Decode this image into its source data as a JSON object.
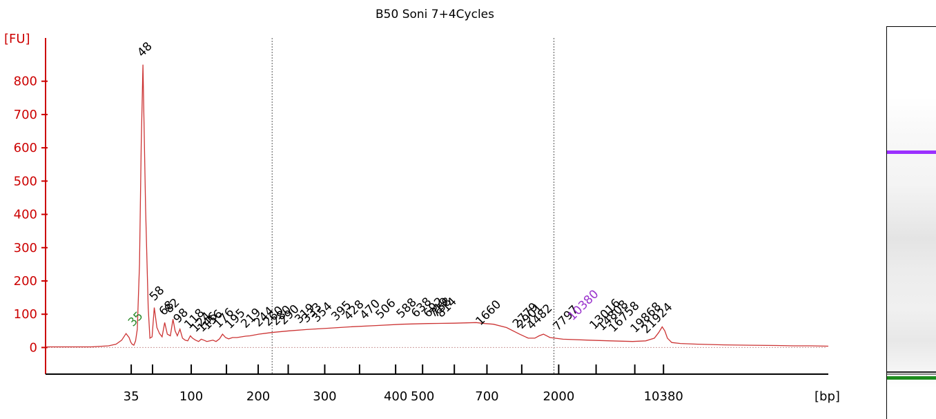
{
  "chart_data": {
    "type": "line",
    "title": "B50 Soni 7+4Cycles",
    "ylabel": "[FU]",
    "xlabel": "[bp]",
    "ylim": [
      -80,
      930
    ],
    "yticks": [
      0,
      100,
      200,
      300,
      400,
      500,
      600,
      700,
      800
    ],
    "xticks": [
      {
        "pos": 0.197,
        "label": "35"
      },
      {
        "pos": 0.246,
        "label": ""
      },
      {
        "pos": 0.335,
        "label": "100"
      },
      {
        "pos": 0.416,
        "label": ""
      },
      {
        "pos": 0.489,
        "label": "200"
      },
      {
        "pos": 0.558,
        "label": ""
      },
      {
        "pos": 0.642,
        "label": "300"
      },
      {
        "pos": 0.722,
        "label": ""
      },
      {
        "pos": 0.805,
        "label": "400"
      },
      {
        "pos": 0.867,
        "label": "500"
      },
      {
        "pos": 0.94,
        "label": ""
      },
      {
        "pos": 1.015,
        "label": "700"
      },
      {
        "pos": 1.095,
        "label": ""
      },
      {
        "pos": 1.18,
        "label": "2000"
      },
      {
        "pos": 1.266,
        "label": ""
      },
      {
        "pos": 1.355,
        "label": ""
      },
      {
        "pos": 1.421,
        "label": "10380"
      }
    ],
    "vlines": [
      0.521,
      1.169
    ],
    "series": [
      {
        "color": "#cc3333",
        "x": [
          0,
          0.105,
          0.145,
          0.162,
          0.175,
          0.185,
          0.192,
          0.196,
          0.199,
          0.203,
          0.207,
          0.211,
          0.216,
          0.22,
          0.224,
          0.23,
          0.236,
          0.24,
          0.245,
          0.25,
          0.256,
          0.262,
          0.268,
          0.274,
          0.28,
          0.287,
          0.293,
          0.298,
          0.303,
          0.309,
          0.315,
          0.321,
          0.327,
          0.333,
          0.338,
          0.345,
          0.352,
          0.358,
          0.364,
          0.371,
          0.378,
          0.385,
          0.392,
          0.4,
          0.407,
          0.414,
          0.421,
          0.43,
          0.44,
          0.45,
          0.46,
          0.47,
          0.49,
          0.52,
          0.56,
          0.6,
          0.65,
          0.7,
          0.76,
          0.82,
          0.88,
          0.94,
          0.99,
          1.01,
          1.03,
          1.06,
          1.09,
          1.11,
          1.125,
          1.135,
          1.145,
          1.16,
          1.19,
          1.25,
          1.3,
          1.35,
          1.38,
          1.4,
          1.41,
          1.418,
          1.424,
          1.43,
          1.44,
          1.46,
          1.5,
          1.56,
          1.62,
          1.68,
          1.72,
          1.76,
          1.8
        ],
        "y": [
          2,
          2,
          5,
          10,
          22,
          42,
          30,
          16,
          10,
          7,
          20,
          55,
          250,
          610,
          850,
          420,
          120,
          28,
          32,
          120,
          60,
          42,
          32,
          75,
          40,
          35,
          85,
          50,
          35,
          55,
          28,
          22,
          20,
          35,
          28,
          22,
          18,
          25,
          22,
          18,
          20,
          22,
          18,
          26,
          40,
          30,
          26,
          30,
          30,
          32,
          34,
          35,
          40,
          45,
          50,
          54,
          58,
          62,
          66,
          70,
          72,
          73,
          75,
          72,
          70,
          60,
          40,
          28,
          28,
          35,
          40,
          30,
          25,
          22,
          20,
          18,
          20,
          28,
          45,
          62,
          50,
          28,
          15,
          12,
          10,
          8,
          7,
          6,
          5,
          5,
          4
        ]
      }
    ],
    "peak_labels": [
      {
        "x": 0.201,
        "y": 45,
        "text": "35",
        "color": "#2e8b2e"
      },
      {
        "x": 0.222,
        "y": 855,
        "text": "48",
        "color": "#000000"
      },
      {
        "x": 0.25,
        "y": 122,
        "text": "58",
        "color": "#000000"
      },
      {
        "x": 0.272,
        "y": 78,
        "text": "68",
        "color": "#000000"
      },
      {
        "x": 0.285,
        "y": 85,
        "text": "82",
        "color": "#000000"
      },
      {
        "x": 0.305,
        "y": 55,
        "text": "98",
        "color": "#000000"
      },
      {
        "x": 0.33,
        "y": 38,
        "text": "118",
        "color": "#000000"
      },
      {
        "x": 0.345,
        "y": 28,
        "text": "124",
        "color": "#000000"
      },
      {
        "x": 0.36,
        "y": 28,
        "text": "146",
        "color": "#000000"
      },
      {
        "x": 0.372,
        "y": 35,
        "text": "156",
        "color": "#000000"
      },
      {
        "x": 0.398,
        "y": 40,
        "text": "176",
        "color": "#000000"
      },
      {
        "x": 0.424,
        "y": 38,
        "text": "195",
        "color": "#000000"
      },
      {
        "x": 0.46,
        "y": 40,
        "text": "219",
        "color": "#000000"
      },
      {
        "x": 0.49,
        "y": 44,
        "text": "244",
        "color": "#000000"
      },
      {
        "x": 0.512,
        "y": 46,
        "text": "260",
        "color": "#000000"
      },
      {
        "x": 0.53,
        "y": 48,
        "text": "280",
        "color": "#000000"
      },
      {
        "x": 0.548,
        "y": 50,
        "text": "290",
        "color": "#000000"
      },
      {
        "x": 0.584,
        "y": 54,
        "text": "319",
        "color": "#000000"
      },
      {
        "x": 0.6,
        "y": 56,
        "text": "333",
        "color": "#000000"
      },
      {
        "x": 0.624,
        "y": 58,
        "text": "354",
        "color": "#000000"
      },
      {
        "x": 0.668,
        "y": 62,
        "text": "395",
        "color": "#000000"
      },
      {
        "x": 0.697,
        "y": 64,
        "text": "428",
        "color": "#000000"
      },
      {
        "x": 0.734,
        "y": 66,
        "text": "470",
        "color": "#000000"
      },
      {
        "x": 0.77,
        "y": 68,
        "text": "506",
        "color": "#000000"
      },
      {
        "x": 0.818,
        "y": 70,
        "text": "588",
        "color": "#000000"
      },
      {
        "x": 0.852,
        "y": 72,
        "text": "638",
        "color": "#000000"
      },
      {
        "x": 0.88,
        "y": 72,
        "text": "692",
        "color": "#000000"
      },
      {
        "x": 0.892,
        "y": 72,
        "text": "719",
        "color": "#000000"
      },
      {
        "x": 0.898,
        "y": 72,
        "text": "758",
        "color": "#000000"
      },
      {
        "x": 0.91,
        "y": 72,
        "text": "814",
        "color": "#000000"
      },
      {
        "x": 1.0,
        "y": 48,
        "text": "1660",
        "color": "#000000"
      },
      {
        "x": 1.085,
        "y": 40,
        "text": "2779",
        "color": "#000000"
      },
      {
        "x": 1.095,
        "y": 38,
        "text": "2901",
        "color": "#000000"
      },
      {
        "x": 1.118,
        "y": 36,
        "text": "4482",
        "color": "#000000"
      },
      {
        "x": 1.178,
        "y": 32,
        "text": "7797",
        "color": "#000000"
      },
      {
        "x": 1.212,
        "y": 63,
        "text": "10380",
        "color": "#9932cc"
      },
      {
        "x": 1.262,
        "y": 36,
        "text": "13016",
        "color": "#000000"
      },
      {
        "x": 1.28,
        "y": 32,
        "text": "14808",
        "color": "#000000"
      },
      {
        "x": 1.306,
        "y": 28,
        "text": "16758",
        "color": "#000000"
      },
      {
        "x": 1.356,
        "y": 26,
        "text": "19868",
        "color": "#000000"
      },
      {
        "x": 1.382,
        "y": 24,
        "text": "21924",
        "color": "#000000"
      }
    ]
  },
  "gel": {
    "bands": [
      {
        "pos": 0.315,
        "color": "#9b30ff",
        "thickness": 5
      },
      {
        "pos": 0.878,
        "color": "#222222",
        "thickness": 2
      },
      {
        "pos": 0.884,
        "color": "#888888",
        "thickness": 2
      },
      {
        "pos": 0.891,
        "color": "#1e8c1e",
        "thickness": 5
      }
    ]
  }
}
